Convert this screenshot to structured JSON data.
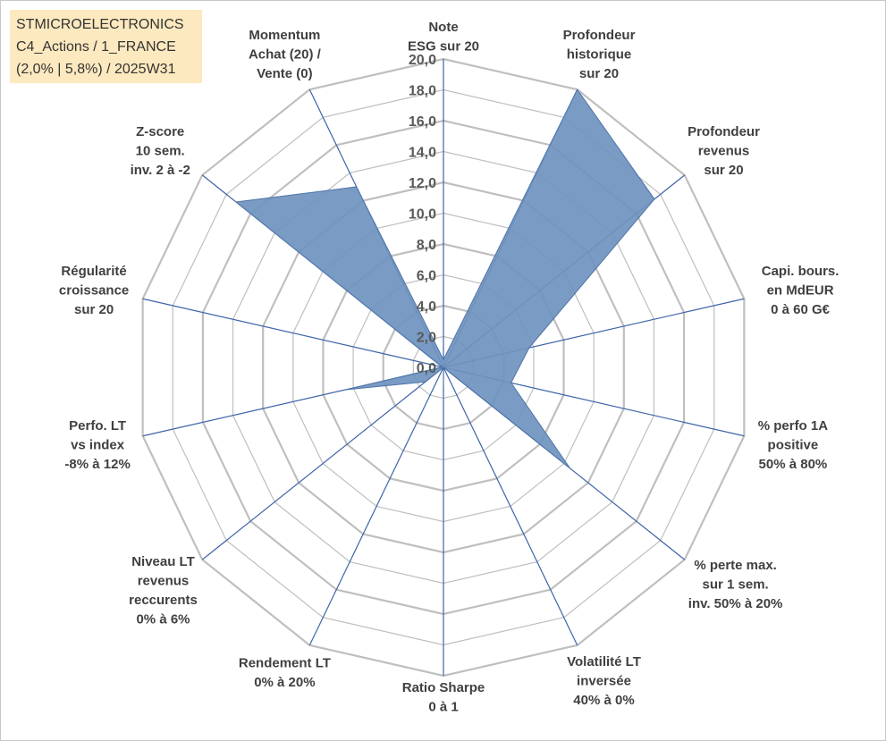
{
  "title_box": {
    "line1": "STMICROELECTRONICS",
    "line2": "C4_Actions / 1_FRANCE",
    "line3": "(2,0% | 5,8%) / 2025W31"
  },
  "colors": {
    "series_fill": "#6f93bf",
    "series_stroke": "#4e74a8",
    "spoke": "#3d64a8",
    "grid": "#bfbfbf",
    "title_bg": "#fde9bf"
  },
  "chart_data": {
    "type": "radar",
    "rmin": 0,
    "rmax": 20,
    "ticks": [
      "0,0",
      "2,0",
      "4,0",
      "6,0",
      "8,0",
      "10,0",
      "12,0",
      "14,0",
      "16,0",
      "18,0",
      "20,0"
    ],
    "grid": true,
    "axes": [
      {
        "label": [
          "Note",
          "ESG sur 20"
        ]
      },
      {
        "label": [
          "Profondeur",
          "historique",
          "sur 20"
        ]
      },
      {
        "label": [
          "Profondeur",
          "revenus",
          "sur 20"
        ]
      },
      {
        "label": [
          "Capi. bours.",
          "en MdEUR",
          "0 à 60 G€"
        ]
      },
      {
        "label": [
          "% perfo 1A",
          "positive",
          "50% à 80%"
        ]
      },
      {
        "label": [
          "% perte max.",
          "sur 1 sem.",
          "inv. 50% à 20%"
        ]
      },
      {
        "label": [
          "Volatilité LT",
          "inversée",
          "40% à 0%"
        ]
      },
      {
        "label": [
          "Ratio Sharpe",
          "0 à 1"
        ]
      },
      {
        "label": [
          "Rendement LT",
          "0% à 20%"
        ]
      },
      {
        "label": [
          "Niveau LT",
          "revenus",
          "reccurents",
          "0% à 6%"
        ]
      },
      {
        "label": [
          "Perfo. LT",
          "vs index",
          "-8% à 12%"
        ]
      },
      {
        "label": [
          "Régularité",
          "croissance",
          "sur 20"
        ]
      },
      {
        "label": [
          "Z-score",
          "10 sem.",
          "inv. 2 à -2"
        ]
      },
      {
        "label": [
          "Momentum",
          "Achat (20) /",
          "Vente (0)"
        ]
      }
    ],
    "series": [
      {
        "values": [
          0.5,
          20.0,
          17.5,
          5.7,
          4.5,
          10.5,
          0.0,
          1.2,
          0.0,
          1.5,
          6.5,
          0.1,
          17.2,
          13.0
        ]
      }
    ]
  }
}
